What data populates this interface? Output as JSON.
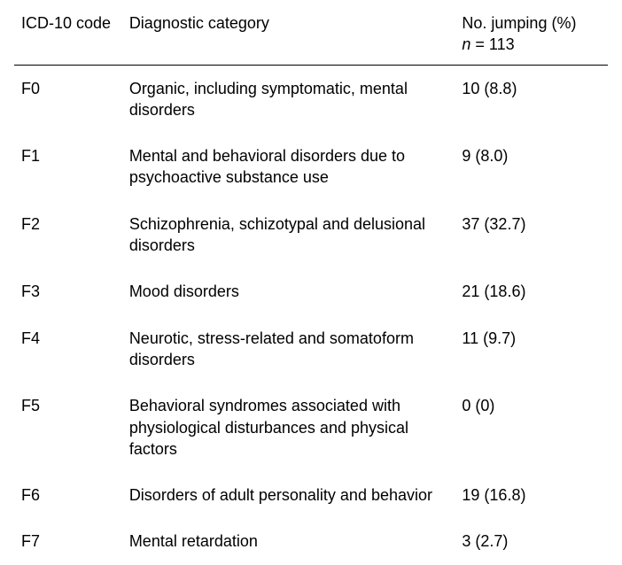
{
  "table": {
    "columns": {
      "code": "ICD-10 code",
      "category": "Diagnostic category",
      "count_line1": "No. jumping (%)",
      "count_line2_prefix": "n",
      "count_line2_rest": " = 113"
    },
    "rows": [
      {
        "code": "F0",
        "category": "Organic, including symptomatic, mental disorders",
        "count": "10 (8.8)"
      },
      {
        "code": "F1",
        "category": "Mental and behavioral disorders due to psychoactive substance use",
        "count": "9 (8.0)"
      },
      {
        "code": "F2",
        "category": "Schizophrenia, schizotypal and delusional disorders",
        "count": "37 (32.7)"
      },
      {
        "code": "F3",
        "category": "Mood disorders",
        "count": "21 (18.6)"
      },
      {
        "code": "F4",
        "category": "Neurotic, stress-related and somatoform disorders",
        "count": "11 (9.7)"
      },
      {
        "code": "F5",
        "category": "Behavioral syndromes associated with physiological disturbances and physical factors",
        "count": "0 (0)"
      },
      {
        "code": "F6",
        "category": "Disorders of adult personality and behavior",
        "count": "19 (16.8)"
      },
      {
        "code": "F7",
        "category": "Mental retardation",
        "count": "3 (2.7)"
      }
    ],
    "col_widths": {
      "code": 120,
      "category": 370,
      "count": 170
    },
    "font_size": 18,
    "text_color": "#000000",
    "background_color": "#ffffff",
    "header_border_color": "#000000"
  }
}
